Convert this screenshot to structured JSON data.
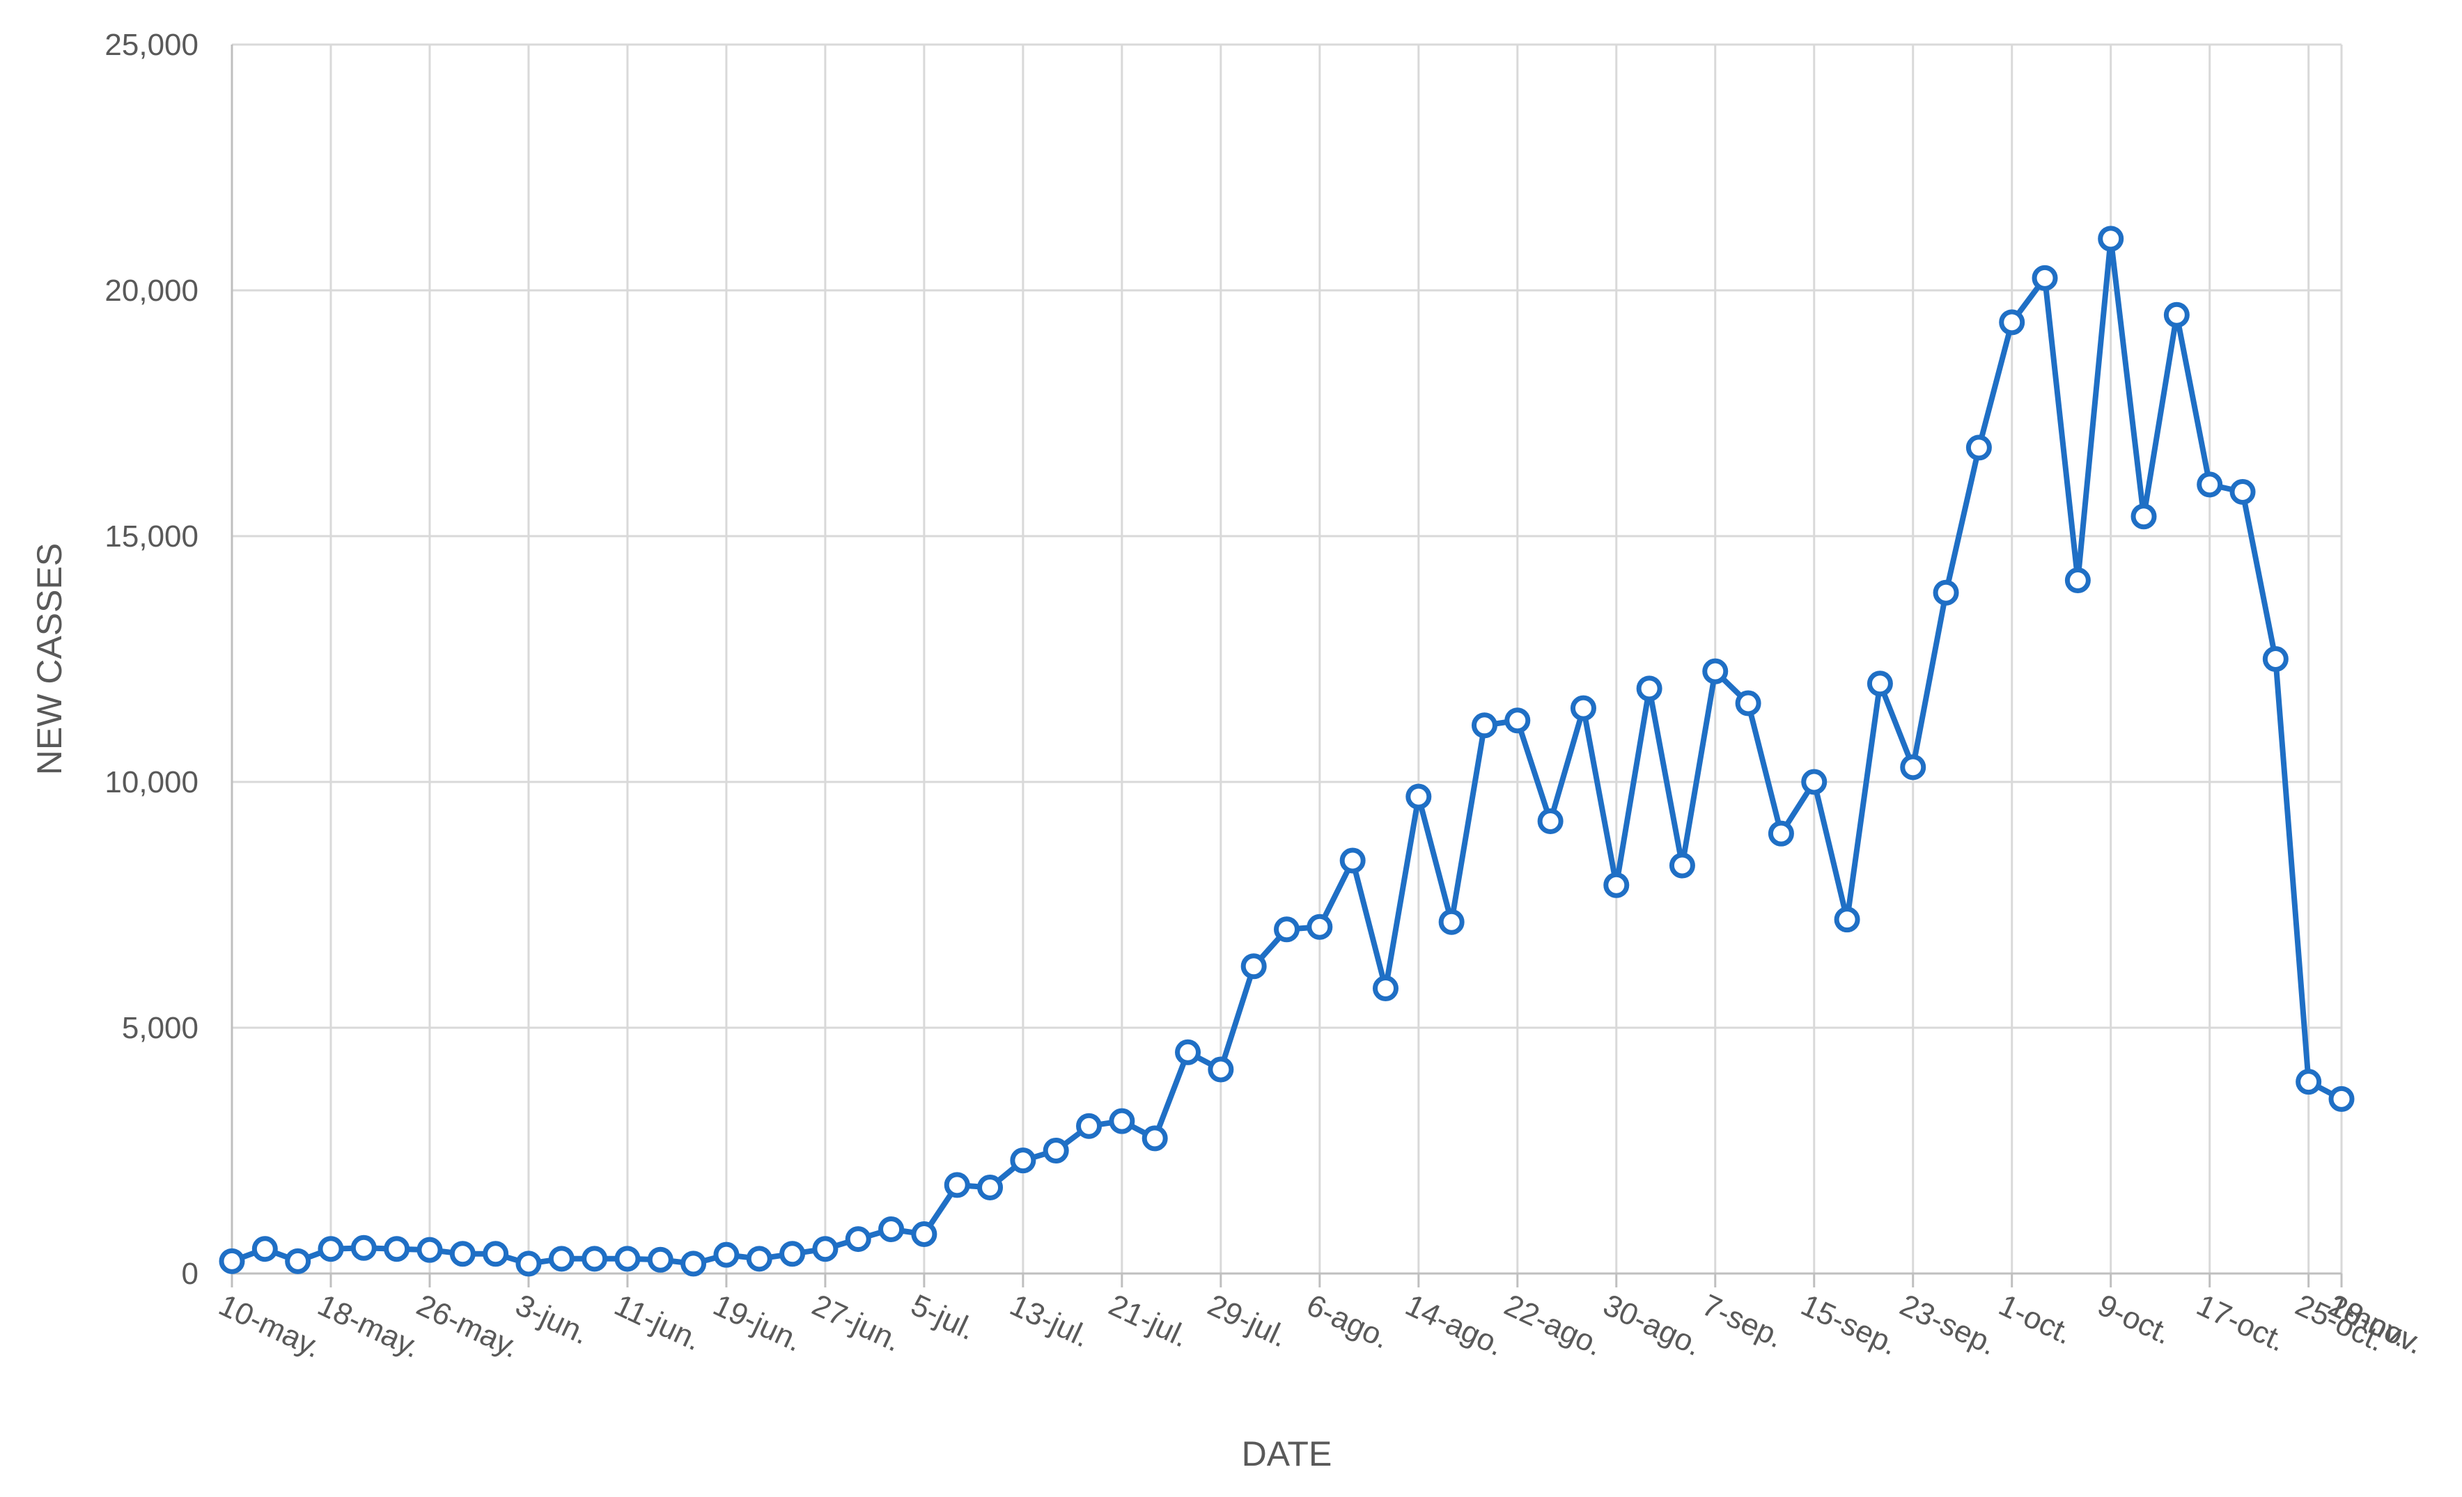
{
  "chart_data": {
    "type": "line",
    "title": "",
    "xlabel": "DATE",
    "ylabel": "NEW CASSES",
    "ylim": [
      0,
      25000
    ],
    "y_ticks": [
      0,
      5000,
      10000,
      15000,
      20000,
      25000
    ],
    "y_tick_labels": [
      "0",
      "5,000",
      "10,000",
      "15,000",
      "20,000",
      "25,000"
    ],
    "x_tick_labels": [
      "10-may.",
      "18-may.",
      "26-may.",
      "3-jun.",
      "11-jun.",
      "19-jun.",
      "27-jun.",
      "5-jul.",
      "13-jul.",
      "21-jul.",
      "29-jul.",
      "6-ago.",
      "14-ago.",
      "22-ago.",
      "30-ago.",
      "7-sep.",
      "15-sep.",
      "23-sep.",
      "1-oct.",
      "9-oct.",
      "17-oct.",
      "25-oct.",
      "2-nov.",
      "10-nov.",
      "18-nov."
    ],
    "grid": true,
    "legend": "none",
    "line_color": "#1f6fc5",
    "series": [
      {
        "values": [
          250,
          500,
          250,
          500,
          520,
          500,
          480,
          400,
          400,
          200,
          300,
          300,
          300,
          280,
          200,
          380,
          300,
          400,
          500,
          700,
          900,
          800,
          1800,
          1750,
          2300,
          2500,
          3000,
          3100,
          2750,
          4500,
          4150,
          6250,
          7000,
          7050,
          8400,
          5800,
          9700,
          7150,
          11150,
          11250,
          9200,
          11500,
          7900,
          11900,
          8300,
          12250,
          11600,
          8950,
          10000,
          7200,
          12000,
          10300,
          13850,
          16800,
          19350,
          20250,
          14100,
          21050,
          15400,
          19500,
          16050,
          15900,
          12500,
          3900,
          3550
        ]
      }
    ]
  }
}
